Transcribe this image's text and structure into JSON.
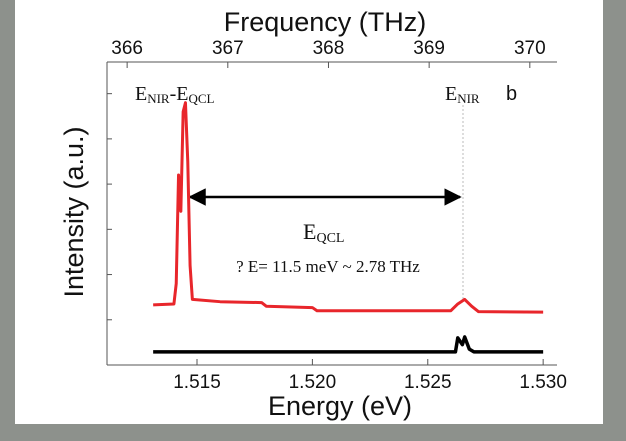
{
  "chart_data": {
    "type": "line",
    "xlabel": "Energy (eV)",
    "ylabel": "Intensity (a.u.)",
    "x2label": "Frequency (THz)",
    "xlim": [
      1.5111,
      1.5306
    ],
    "xticks": [
      1.515,
      {
        "value": 1.52,
        "label": "1.520"
      },
      1.525,
      {
        "value": 1.53,
        "label": "1.530"
      }
    ],
    "x2lim": [
      365.8,
      370.27
    ],
    "x2ticks": [
      366,
      367,
      368,
      369,
      370
    ],
    "ylim": [
      0,
      6.7
    ],
    "yticks": [
      1,
      2,
      3,
      4,
      5,
      6
    ],
    "series": [
      {
        "color": "#e8262b",
        "x": [
          1.5131,
          1.514,
          1.5141,
          1.5142,
          1.5143,
          1.5144,
          1.5145,
          1.5146,
          1.5147,
          1.5148,
          1.516,
          1.5178,
          1.518,
          1.52,
          1.5202,
          1.526,
          1.5263,
          1.5266,
          1.5269,
          1.5272,
          1.53
        ],
        "values": [
          1.33,
          1.35,
          1.8,
          4.2,
          3.4,
          5.6,
          5.8,
          4.5,
          2.2,
          1.45,
          1.4,
          1.38,
          1.3,
          1.27,
          1.2,
          1.2,
          1.35,
          1.45,
          1.3,
          1.18,
          1.17
        ]
      },
      {
        "color": "#000000",
        "x": [
          1.5131,
          1.5262,
          1.5263,
          1.5265,
          1.5266,
          1.5268,
          1.527,
          1.53
        ],
        "values": [
          0.29,
          0.29,
          0.6,
          0.45,
          0.62,
          0.35,
          0.29,
          0.29
        ]
      }
    ],
    "annotations": [
      {
        "parts": [
          "E",
          "NIR",
          "-E",
          "QCL"
        ]
      },
      {
        "parts": [
          "E",
          "NIR"
        ]
      },
      {
        "parts": [
          "b"
        ]
      },
      {
        "parts": [
          "E",
          "QCL"
        ]
      },
      {
        "parts": [
          "? E= 11.5 meV ~ 2.78 THz"
        ]
      }
    ]
  }
}
